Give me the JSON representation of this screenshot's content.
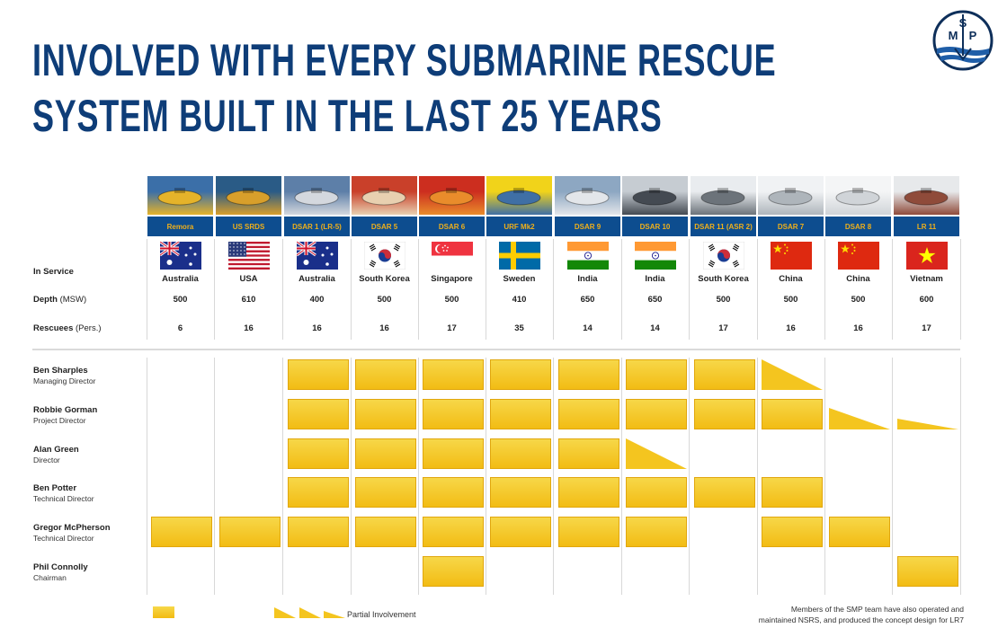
{
  "title": {
    "line1": "INVOLVED WITH EVERY SUBMARINE RESCUE",
    "line2": "SYSTEM BUILT IN THE LAST 25 YEARS"
  },
  "logo": {
    "letters": [
      "S",
      "M",
      "P"
    ]
  },
  "row_labels": {
    "in_service": "In Service",
    "depth": "Depth",
    "depth_unit": "(MSW)",
    "rescuees": "Rescuees",
    "rescuees_unit": "(Pers.)"
  },
  "systems": [
    {
      "name": "Remora",
      "country": "Australia",
      "depth": "500",
      "rescuees": "6",
      "flag": "australia"
    },
    {
      "name": "US SRDS",
      "country": "USA",
      "depth": "610",
      "rescuees": "16",
      "flag": "usa"
    },
    {
      "name": "DSAR 1 (LR-5)",
      "country": "Australia",
      "depth": "400",
      "rescuees": "16",
      "flag": "australia"
    },
    {
      "name": "DSAR 5",
      "country": "South Korea",
      "depth": "500",
      "rescuees": "16",
      "flag": "south-korea"
    },
    {
      "name": "DSAR 6",
      "country": "Singapore",
      "depth": "500",
      "rescuees": "17",
      "flag": "singapore"
    },
    {
      "name": "URF Mk2",
      "country": "Sweden",
      "depth": "410",
      "rescuees": "35",
      "flag": "sweden"
    },
    {
      "name": "DSAR 9",
      "country": "India",
      "depth": "650",
      "rescuees": "14",
      "flag": "india"
    },
    {
      "name": "DSAR 10",
      "country": "India",
      "depth": "650",
      "rescuees": "14",
      "flag": "india"
    },
    {
      "name": "DSAR 11 (ASR 2)",
      "country": "South Korea",
      "depth": "500",
      "rescuees": "17",
      "flag": "south-korea"
    },
    {
      "name": "DSAR 7",
      "country": "China",
      "depth": "500",
      "rescuees": "16",
      "flag": "china"
    },
    {
      "name": "DSAR 8",
      "country": "China",
      "depth": "500",
      "rescuees": "16",
      "flag": "china"
    },
    {
      "name": "LR 11",
      "country": "Vietnam",
      "depth": "600",
      "rescuees": "17",
      "flag": "vietnam"
    }
  ],
  "people": [
    {
      "name": "Ben Sharples",
      "role": "Managing Director",
      "involvement": [
        "none",
        "none",
        "full",
        "full",
        "full",
        "full",
        "full",
        "full",
        "full",
        "partial",
        "none",
        "none"
      ]
    },
    {
      "name": "Robbie Gorman",
      "role": "Project Director",
      "involvement": [
        "none",
        "none",
        "full",
        "full",
        "full",
        "full",
        "full",
        "full",
        "full",
        "full",
        "partial",
        "partial"
      ]
    },
    {
      "name": "Alan Green",
      "role": "Director",
      "involvement": [
        "none",
        "none",
        "full",
        "full",
        "full",
        "full",
        "full",
        "partial",
        "none",
        "none",
        "none",
        "none"
      ]
    },
    {
      "name": "Ben Potter",
      "role": "Technical Director",
      "involvement": [
        "none",
        "none",
        "full",
        "full",
        "full",
        "full",
        "full",
        "full",
        "full",
        "full",
        "none",
        "none"
      ]
    },
    {
      "name": "Gregor McPherson",
      "role": "Technical Director",
      "involvement": [
        "full",
        "full",
        "full",
        "full",
        "full",
        "full",
        "full",
        "full",
        "none",
        "full",
        "full",
        "none"
      ]
    },
    {
      "name": "Phil Connolly",
      "role": "Chairman",
      "involvement": [
        "none",
        "none",
        "none",
        "none",
        "full",
        "none",
        "none",
        "none",
        "none",
        "none",
        "none",
        "full"
      ]
    }
  ],
  "legend": {
    "partial_label": "Partial Involvement"
  },
  "footnote": {
    "line1": "Members of the SMP team have also operated and",
    "line2": "maintained NSRS, and produced the concept design for LR7"
  },
  "colors": {
    "title": "#0e3d78",
    "bar_header": "#0d4d8f",
    "bar_text": "#f0b01a",
    "involvement": "#f4c51f"
  }
}
